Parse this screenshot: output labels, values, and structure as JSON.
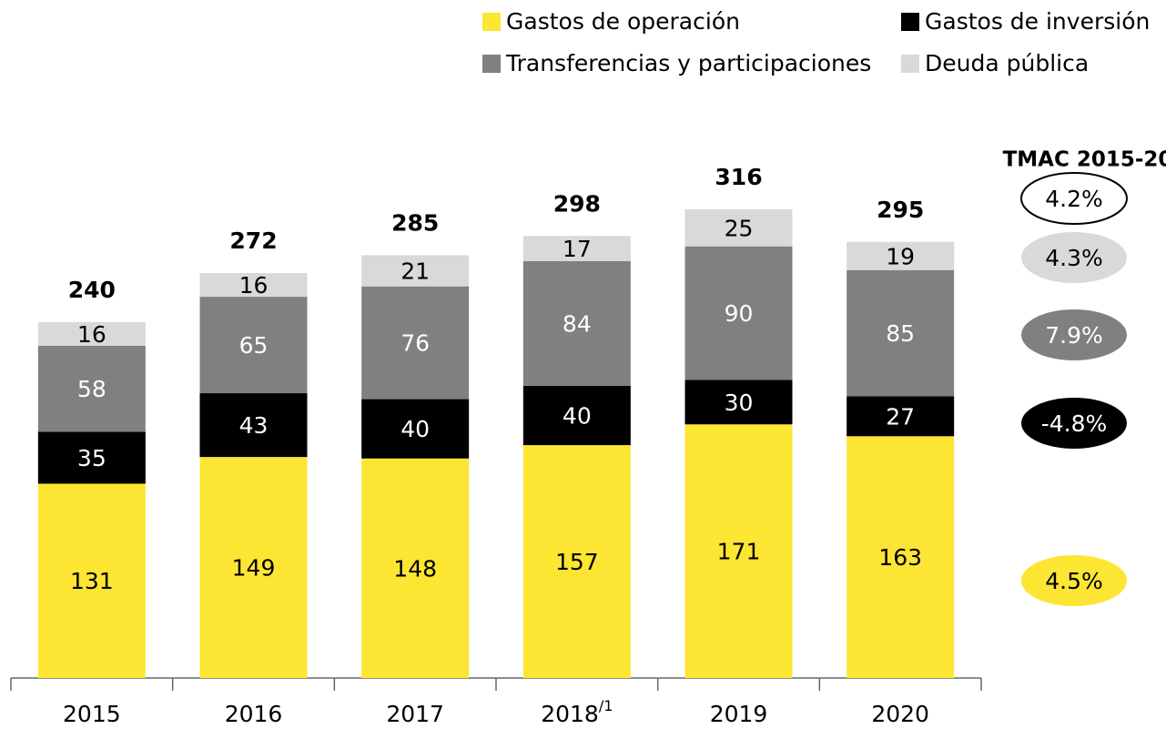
{
  "chart_data": {
    "type": "stacked-bar",
    "categories": [
      "2015",
      "2016",
      "2017",
      "2018",
      "2019",
      "2020"
    ],
    "category_marks": [
      null,
      null,
      null,
      "/1",
      null,
      null
    ],
    "series": [
      {
        "name": "Gastos de operación",
        "color": "#fde533",
        "values": [
          131,
          149,
          148,
          157,
          171,
          163
        ]
      },
      {
        "name": "Gastos de inversión",
        "color": "#000000",
        "values": [
          35,
          43,
          40,
          40,
          30,
          27
        ]
      },
      {
        "name": "Transferencias y participaciones",
        "color": "#808080",
        "values": [
          58,
          65,
          76,
          84,
          90,
          85
        ]
      },
      {
        "name": "Deuda pública",
        "color": "#d9d9d9",
        "values": [
          16,
          16,
          21,
          17,
          25,
          19
        ]
      }
    ],
    "totals": [
      240,
      272,
      285,
      298,
      316,
      295
    ],
    "cagr": {
      "title": "TMAC 2015-20",
      "values": [
        4.5,
        -4.8,
        7.9,
        4.3
      ],
      "value_labels": [
        "4.5%",
        "-4.8%",
        "7.9%",
        "4.3%"
      ],
      "total": 4.2,
      "total_label": "4.2%"
    }
  }
}
